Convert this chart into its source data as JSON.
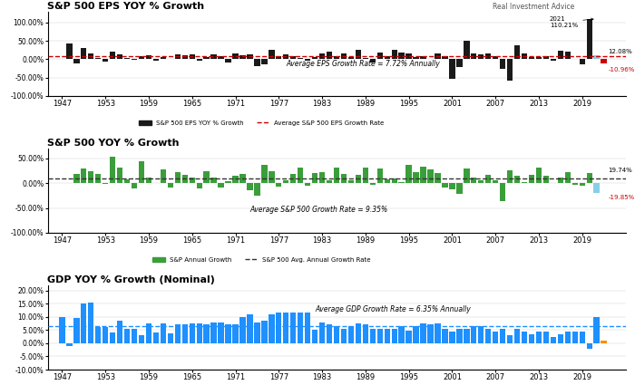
{
  "title1": "S&P 500 EPS YOY % Growth",
  "title2": "S&P 500 YOY % Growth",
  "title3": "GDP YOY % Growth (Nominal)",
  "watermark": "Real Investment Advice",
  "years": [
    1947,
    1948,
    1949,
    1950,
    1951,
    1952,
    1953,
    1954,
    1955,
    1956,
    1957,
    1958,
    1959,
    1960,
    1961,
    1962,
    1963,
    1964,
    1965,
    1966,
    1967,
    1968,
    1969,
    1970,
    1971,
    1972,
    1973,
    1974,
    1975,
    1976,
    1977,
    1978,
    1979,
    1980,
    1981,
    1982,
    1983,
    1984,
    1985,
    1986,
    1987,
    1988,
    1989,
    1990,
    1991,
    1992,
    1993,
    1994,
    1995,
    1996,
    1997,
    1998,
    1999,
    2000,
    2001,
    2002,
    2003,
    2004,
    2005,
    2006,
    2007,
    2008,
    2009,
    2010,
    2011,
    2012,
    2013,
    2014,
    2015,
    2016,
    2017,
    2018,
    2019,
    2020,
    2021,
    2022
  ],
  "eps_growth": [
    0.0,
    43.0,
    -11.0,
    30.0,
    16.0,
    3.0,
    -6.0,
    20.0,
    14.0,
    4.0,
    -2.0,
    8.0,
    11.0,
    -5.0,
    5.0,
    2.0,
    14.0,
    12.0,
    13.0,
    -3.0,
    6.0,
    13.0,
    8.0,
    -8.0,
    15.0,
    12.0,
    13.0,
    -18.0,
    -13.0,
    26.0,
    9.0,
    14.0,
    8.0,
    3.0,
    -5.0,
    7.0,
    17.0,
    20.0,
    8.0,
    15.0,
    6.0,
    25.0,
    4.0,
    -10.0,
    18.0,
    8.0,
    26.0,
    18.0,
    17.0,
    7.0,
    8.0,
    2.0,
    17.0,
    8.0,
    -54.0,
    -20.0,
    50.0,
    17.0,
    14.0,
    15.0,
    8.0,
    -25.0,
    -57.0,
    38.0,
    16.0,
    6.0,
    6.0,
    8.0,
    -3.0,
    24.0,
    22.0,
    0.0,
    -14.0,
    110.21,
    12.08,
    -10.96
  ],
  "sp500_growth": [
    0.0,
    0.0,
    18.0,
    30.0,
    24.0,
    18.0,
    -1.0,
    53.0,
    32.0,
    7.0,
    -11.0,
    44.0,
    12.0,
    0.0,
    27.0,
    -9.0,
    23.0,
    16.0,
    12.0,
    -10.0,
    24.0,
    11.0,
    -8.0,
    4.0,
    14.0,
    19.0,
    -15.0,
    -26.0,
    37.0,
    24.0,
    -7.0,
    6.0,
    18.0,
    32.0,
    -5.0,
    21.0,
    23.0,
    6.0,
    32.0,
    18.0,
    5.0,
    17.0,
    32.0,
    -3.0,
    30.0,
    8.0,
    10.0,
    2.0,
    37.0,
    23.0,
    34.0,
    28.0,
    21.0,
    -9.0,
    -12.0,
    -22.0,
    29.0,
    11.0,
    5.0,
    16.0,
    5.0,
    -37.0,
    26.0,
    15.0,
    2.0,
    16.0,
    32.0,
    14.0,
    1.0,
    12.0,
    22.0,
    -4.0,
    -6.0,
    19.74,
    -19.85,
    0.0
  ],
  "gdp_growth": [
    9.9,
    -1.0,
    9.7,
    14.9,
    15.3,
    6.0,
    6.0,
    4.2,
    8.7,
    5.5,
    5.6,
    3.2,
    7.6,
    4.0,
    7.5,
    3.6,
    7.0,
    7.0,
    7.5,
    7.6,
    7.0,
    8.0,
    8.0,
    7.0,
    7.3,
    9.9,
    11.0,
    8.0,
    8.5,
    11.0,
    11.5,
    11.5,
    11.7,
    11.6,
    11.5,
    5.0,
    7.8,
    7.0,
    6.5,
    5.5,
    6.5,
    7.5,
    7.0,
    5.5,
    5.5,
    5.5,
    5.5,
    6.5,
    4.7,
    6.5,
    7.5,
    7.0,
    7.5,
    5.5,
    4.5,
    5.5,
    5.5,
    6.5,
    6.5,
    5.5,
    4.5,
    5.5,
    3.2,
    5.5,
    4.5,
    3.5,
    4.5,
    4.5,
    2.5,
    3.5,
    4.5,
    4.5,
    4.5,
    -2.2,
    10.0,
    1.0
  ],
  "eps_avg": 7.72,
  "sp500_avg": 9.35,
  "gdp_avg": 6.35,
  "bar_color_black": "#1a1a1a",
  "bar_color_green": "#3a9e3a",
  "bar_color_blue": "#1e90ff",
  "bar_color_red": "#cc0000",
  "bar_color_orange": "#ff8c00",
  "bar_color_light_blue": "#87ceeb",
  "avg_line_color_red": "#cc0000",
  "avg_line_color_black": "#333333",
  "avg_line_color_blue": "#1e90ff",
  "annotation_avg_eps": "Average EPS Growth Rate = 7.72% Annually",
  "annotation_avg_sp500": "Average S&P 500 Growth Rate = 9.35%",
  "annotation_avg_gdp": "Average GDP Growth Rate = 6.35% Annually"
}
